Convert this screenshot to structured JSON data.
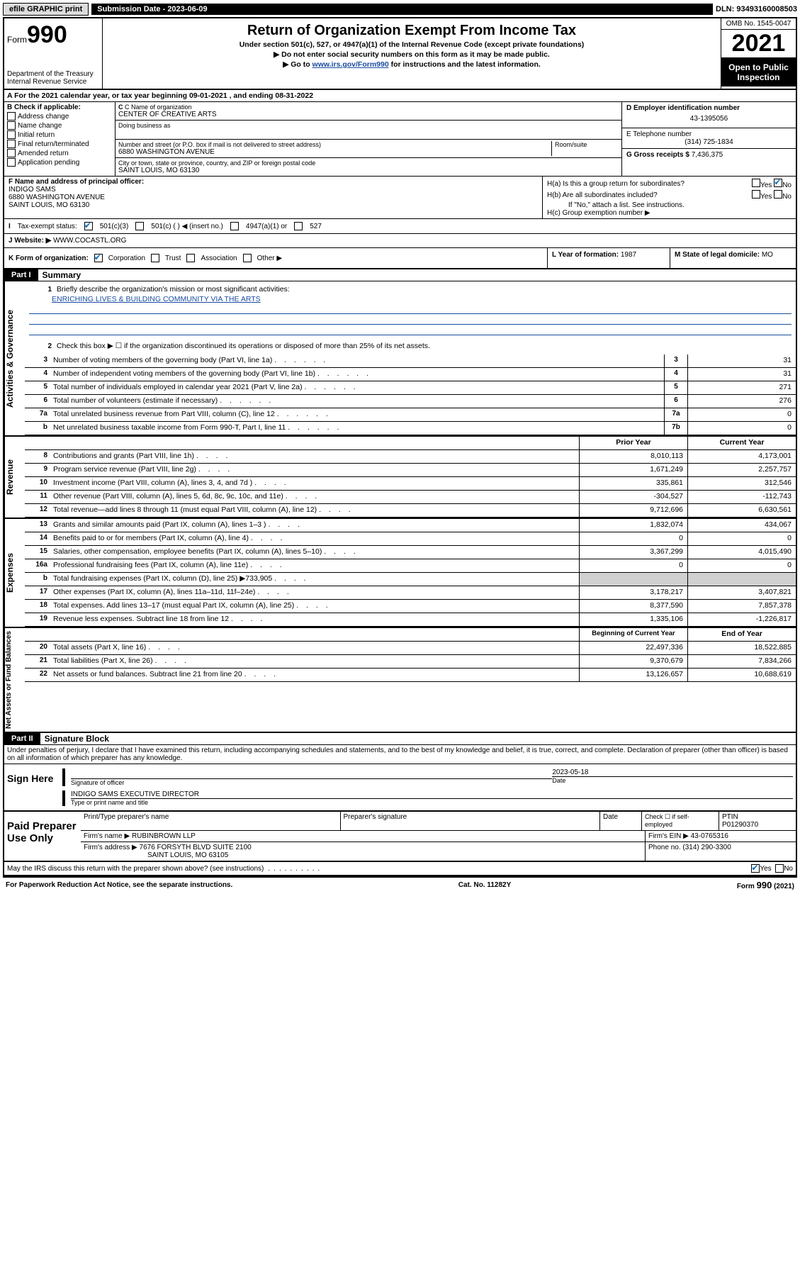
{
  "top": {
    "efile": "efile GRAPHIC print",
    "submission_label": "Submission Date - 2023-06-09",
    "dln": "DLN: 93493160008503"
  },
  "header": {
    "form_prefix": "Form",
    "form_number": "990",
    "dept": "Department of the Treasury",
    "irs": "Internal Revenue Service",
    "title": "Return of Organization Exempt From Income Tax",
    "sub1": "Under section 501(c), 527, or 4947(a)(1) of the Internal Revenue Code (except private foundations)",
    "sub2": "▶ Do not enter social security numbers on this form as it may be made public.",
    "sub3_prefix": "▶ Go to ",
    "sub3_link": "www.irs.gov/Form990",
    "sub3_suffix": " for instructions and the latest information.",
    "omb": "OMB No. 1545-0047",
    "year": "2021",
    "open": "Open to Public Inspection"
  },
  "row_a": "For the 2021 calendar year, or tax year beginning 09-01-2021  , and ending 08-31-2022",
  "section_b": {
    "label": "B Check if applicable:",
    "opts": [
      "Address change",
      "Name change",
      "Initial return",
      "Final return/terminated",
      "Amended return",
      "Application pending"
    ],
    "c_name_lbl": "C Name of organization",
    "c_name": "CENTER OF CREATIVE ARTS",
    "dba_lbl": "Doing business as",
    "addr_lbl": "Number and street (or P.O. box if mail is not delivered to street address)",
    "addr": "6880 WASHINGTON AVENUE",
    "room_lbl": "Room/suite",
    "city_lbl": "City or town, state or province, country, and ZIP or foreign postal code",
    "city": "SAINT LOUIS, MO  63130",
    "d_lbl": "D Employer identification number",
    "d_val": "43-1395056",
    "e_lbl": "E Telephone number",
    "e_val": "(314) 725-1834",
    "g_lbl": "G Gross receipts $",
    "g_val": "7,436,375"
  },
  "section_f": {
    "lbl": "F Name and address of principal officer:",
    "name": "INDIGO SAMS",
    "addr1": "6880 WASHINGTON AVENUE",
    "addr2": "SAINT LOUIS, MO  63130"
  },
  "section_h": {
    "ha": "H(a)  Is this a group return for subordinates?",
    "hb": "H(b)  Are all subordinates included?",
    "hb_note": "If \"No,\" attach a list. See instructions.",
    "hc": "H(c)  Group exemption number ▶",
    "yes": "Yes",
    "no": "No"
  },
  "section_i": {
    "lbl": "Tax-exempt status:",
    "opt1": "501(c)(3)",
    "opt2": "501(c) (  ) ◀ (insert no.)",
    "opt3": "4947(a)(1) or",
    "opt4": "527"
  },
  "section_j": {
    "lbl": "Website: ▶",
    "val": "WWW.COCASTL.ORG"
  },
  "section_k": {
    "lbl": "K Form of organization:",
    "o1": "Corporation",
    "o2": "Trust",
    "o3": "Association",
    "o4": "Other ▶",
    "l_lbl": "L Year of formation:",
    "l_val": "1987",
    "m_lbl": "M State of legal domicile:",
    "m_val": "MO"
  },
  "part1": {
    "header": "Part I",
    "title": "Summary",
    "line1_lbl": "Briefly describe the organization's mission or most significant activities:",
    "line1_val": "ENRICHING LIVES & BUILDING COMMUNITY VIA THE ARTS",
    "line2": "Check this box ▶ ☐  if the organization discontinued its operations or disposed of more than 25% of its net assets."
  },
  "side_labels": {
    "governance": "Activities & Governance",
    "revenue": "Revenue",
    "expenses": "Expenses",
    "net": "Net Assets or Fund Balances"
  },
  "governance_rows": [
    {
      "num": "3",
      "desc": "Number of voting members of the governing body (Part VI, line 1a)",
      "box": "3",
      "val": "31"
    },
    {
      "num": "4",
      "desc": "Number of independent voting members of the governing body (Part VI, line 1b)",
      "box": "4",
      "val": "31"
    },
    {
      "num": "5",
      "desc": "Total number of individuals employed in calendar year 2021 (Part V, line 2a)",
      "box": "5",
      "val": "271"
    },
    {
      "num": "6",
      "desc": "Total number of volunteers (estimate if necessary)",
      "box": "6",
      "val": "276"
    },
    {
      "num": "7a",
      "desc": "Total unrelated business revenue from Part VIII, column (C), line 12",
      "box": "7a",
      "val": "0"
    },
    {
      "num": "b",
      "desc": "Net unrelated business taxable income from Form 990-T, Part I, line 11",
      "box": "7b",
      "val": "0"
    }
  ],
  "two_col_header": {
    "prior": "Prior Year",
    "current": "Current Year"
  },
  "revenue_rows": [
    {
      "num": "8",
      "desc": "Contributions and grants (Part VIII, line 1h)",
      "prior": "8,010,113",
      "current": "4,173,001"
    },
    {
      "num": "9",
      "desc": "Program service revenue (Part VIII, line 2g)",
      "prior": "1,671,249",
      "current": "2,257,757"
    },
    {
      "num": "10",
      "desc": "Investment income (Part VIII, column (A), lines 3, 4, and 7d )",
      "prior": "335,861",
      "current": "312,546"
    },
    {
      "num": "11",
      "desc": "Other revenue (Part VIII, column (A), lines 5, 6d, 8c, 9c, 10c, and 11e)",
      "prior": "-304,527",
      "current": "-112,743"
    },
    {
      "num": "12",
      "desc": "Total revenue—add lines 8 through 11 (must equal Part VIII, column (A), line 12)",
      "prior": "9,712,696",
      "current": "6,630,561"
    }
  ],
  "expense_rows": [
    {
      "num": "13",
      "desc": "Grants and similar amounts paid (Part IX, column (A), lines 1–3 )",
      "prior": "1,832,074",
      "current": "434,067"
    },
    {
      "num": "14",
      "desc": "Benefits paid to or for members (Part IX, column (A), line 4)",
      "prior": "0",
      "current": "0"
    },
    {
      "num": "15",
      "desc": "Salaries, other compensation, employee benefits (Part IX, column (A), lines 5–10)",
      "prior": "3,367,299",
      "current": "4,015,490"
    },
    {
      "num": "16a",
      "desc": "Professional fundraising fees (Part IX, column (A), line 11e)",
      "prior": "0",
      "current": "0"
    },
    {
      "num": "b",
      "desc": "Total fundraising expenses (Part IX, column (D), line 25) ▶733,905",
      "prior": "",
      "current": "",
      "shaded": true
    },
    {
      "num": "17",
      "desc": "Other expenses (Part IX, column (A), lines 11a–11d, 11f–24e)",
      "prior": "3,178,217",
      "current": "3,407,821"
    },
    {
      "num": "18",
      "desc": "Total expenses. Add lines 13–17 (must equal Part IX, column (A), line 25)",
      "prior": "8,377,590",
      "current": "7,857,378"
    },
    {
      "num": "19",
      "desc": "Revenue less expenses. Subtract line 18 from line 12",
      "prior": "1,335,106",
      "current": "-1,226,817"
    }
  ],
  "net_header": {
    "prior": "Beginning of Current Year",
    "current": "End of Year"
  },
  "net_rows": [
    {
      "num": "20",
      "desc": "Total assets (Part X, line 16)",
      "prior": "22,497,336",
      "current": "18,522,885"
    },
    {
      "num": "21",
      "desc": "Total liabilities (Part X, line 26)",
      "prior": "9,370,679",
      "current": "7,834,266"
    },
    {
      "num": "22",
      "desc": "Net assets or fund balances. Subtract line 21 from line 20",
      "prior": "13,126,657",
      "current": "10,688,619"
    }
  ],
  "part2": {
    "header": "Part II",
    "title": "Signature Block",
    "declaration": "Under penalties of perjury, I declare that I have examined this return, including accompanying schedules and statements, and to the best of my knowledge and belief, it is true, correct, and complete. Declaration of preparer (other than officer) is based on all information of which preparer has any knowledge."
  },
  "sign": {
    "here": "Sign Here",
    "sig_lbl": "Signature of officer",
    "date_lbl": "Date",
    "date_val": "2023-05-18",
    "name": "INDIGO SAMS  EXECUTIVE DIRECTOR",
    "name_lbl": "Type or print name and title"
  },
  "preparer": {
    "title": "Paid Preparer Use Only",
    "col1": "Print/Type preparer's name",
    "col2": "Preparer's signature",
    "col3": "Date",
    "col4_lbl": "Check ☐ if self-employed",
    "col5_lbl": "PTIN",
    "ptin": "P01290370",
    "firm_name_lbl": "Firm's name    ▶",
    "firm_name": "RUBINBROWN LLP",
    "firm_ein_lbl": "Firm's EIN ▶",
    "firm_ein": "43-0765316",
    "firm_addr_lbl": "Firm's address ▶",
    "firm_addr1": "7676 FORSYTH BLVD SUITE 2100",
    "firm_addr2": "SAINT LOUIS, MO  63105",
    "phone_lbl": "Phone no.",
    "phone": "(314) 290-3300"
  },
  "footer": {
    "discuss": "May the IRS discuss this return with the preparer shown above? (see instructions)",
    "yes": "Yes",
    "no": "No",
    "paperwork": "For Paperwork Reduction Act Notice, see the separate instructions.",
    "cat": "Cat. No. 11282Y",
    "form": "Form 990 (2021)"
  }
}
